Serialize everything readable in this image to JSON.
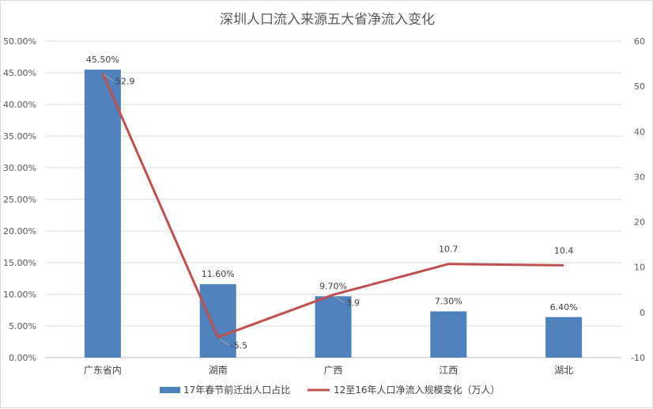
{
  "chart_data": {
    "type": "bar",
    "title": "深圳人口流入来源五大省净流入变化",
    "categories": [
      "广东省内",
      "湖南",
      "广西",
      "江西",
      "湖北"
    ],
    "series": [
      {
        "name": "17年春节前迁出人口占比",
        "type": "bar",
        "axis": "left",
        "values": [
          45.5,
          11.6,
          9.7,
          7.3,
          6.4
        ],
        "labels": [
          "45.50%",
          "11.60%",
          "9.70%",
          "7.30%",
          "6.40%"
        ],
        "color": "#4f81bd"
      },
      {
        "name": "12至16年人口净流入规模变化（万人）",
        "type": "line",
        "axis": "right",
        "values": [
          52.9,
          -5.5,
          3.9,
          10.7,
          10.4
        ],
        "labels": [
          "52.9",
          "-5.5",
          "3.9",
          "10.7",
          "10.4"
        ],
        "color": "#c0504d"
      }
    ],
    "y_left": {
      "range": [
        0,
        50
      ],
      "ticks": [
        "0.00%",
        "5.00%",
        "10.00%",
        "15.00%",
        "20.00%",
        "25.00%",
        "30.00%",
        "35.00%",
        "40.00%",
        "45.00%",
        "50.00%"
      ]
    },
    "y_right": {
      "range": [
        -10,
        60
      ],
      "ticks": [
        "-10",
        "0",
        "10",
        "20",
        "30",
        "40",
        "50",
        "60"
      ]
    },
    "grid": true,
    "legend": "bottom"
  }
}
